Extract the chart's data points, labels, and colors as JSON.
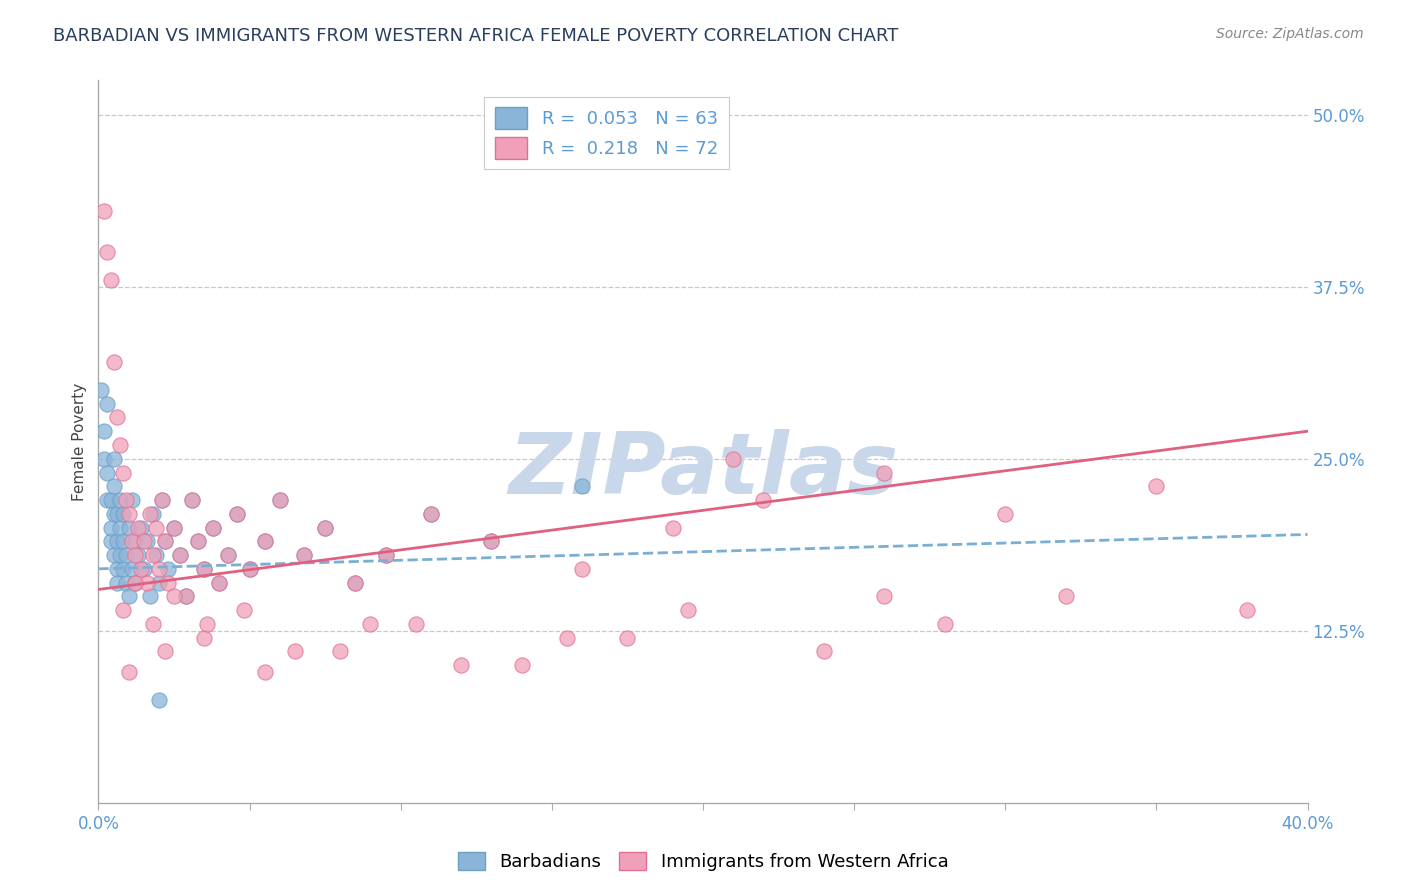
{
  "title": "BARBADIAN VS IMMIGRANTS FROM WESTERN AFRICA FEMALE POVERTY CORRELATION CHART",
  "source": "Source: ZipAtlas.com",
  "ylabel": "Female Poverty",
  "xlim": [
    0.0,
    0.4
  ],
  "ylim": [
    0.0,
    0.525
  ],
  "xticks": [
    0.0,
    0.05,
    0.1,
    0.15,
    0.2,
    0.25,
    0.3,
    0.35,
    0.4
  ],
  "xticklabels": [
    "0.0%",
    "",
    "",
    "",
    "",
    "",
    "",
    "",
    "40.0%"
  ],
  "ytick_positions": [
    0.125,
    0.25,
    0.375,
    0.5
  ],
  "ytick_labels": [
    "12.5%",
    "25.0%",
    "37.5%",
    "50.0%"
  ],
  "grid_color": "#c8c8c8",
  "background_color": "#ffffff",
  "blue_color": "#8ab4d8",
  "blue_edge": "#6a9fc8",
  "blue_line": "#7aafd4",
  "pink_color": "#f0a0b8",
  "pink_edge": "#e07090",
  "pink_line": "#e06080",
  "blue_trend": [
    0.17,
    0.195
  ],
  "pink_trend": [
    0.155,
    0.27
  ],
  "blue_R": 0.053,
  "blue_N": 63,
  "pink_R": 0.218,
  "pink_N": 72,
  "watermark": "ZIPatlas",
  "watermark_color": "#c8d8ea",
  "title_fontsize": 13,
  "axis_label_fontsize": 11,
  "tick_fontsize": 12,
  "legend_fontsize": 13,
  "source_fontsize": 10,
  "blue_x": [
    0.001,
    0.002,
    0.002,
    0.003,
    0.003,
    0.003,
    0.004,
    0.004,
    0.004,
    0.005,
    0.005,
    0.005,
    0.005,
    0.006,
    0.006,
    0.006,
    0.006,
    0.007,
    0.007,
    0.007,
    0.008,
    0.008,
    0.008,
    0.009,
    0.009,
    0.01,
    0.01,
    0.011,
    0.011,
    0.012,
    0.012,
    0.013,
    0.014,
    0.015,
    0.016,
    0.017,
    0.018,
    0.019,
    0.02,
    0.021,
    0.022,
    0.023,
    0.025,
    0.027,
    0.029,
    0.031,
    0.033,
    0.035,
    0.038,
    0.04,
    0.043,
    0.046,
    0.05,
    0.055,
    0.06,
    0.068,
    0.075,
    0.085,
    0.095,
    0.11,
    0.13,
    0.16,
    0.02
  ],
  "blue_y": [
    0.3,
    0.25,
    0.27,
    0.22,
    0.24,
    0.29,
    0.19,
    0.22,
    0.2,
    0.21,
    0.18,
    0.23,
    0.25,
    0.17,
    0.19,
    0.21,
    0.16,
    0.18,
    0.2,
    0.22,
    0.17,
    0.19,
    0.21,
    0.16,
    0.18,
    0.15,
    0.2,
    0.17,
    0.22,
    0.16,
    0.19,
    0.18,
    0.2,
    0.17,
    0.19,
    0.15,
    0.21,
    0.18,
    0.16,
    0.22,
    0.19,
    0.17,
    0.2,
    0.18,
    0.15,
    0.22,
    0.19,
    0.17,
    0.2,
    0.16,
    0.18,
    0.21,
    0.17,
    0.19,
    0.22,
    0.18,
    0.2,
    0.16,
    0.18,
    0.21,
    0.19,
    0.23,
    0.075
  ],
  "pink_x": [
    0.002,
    0.003,
    0.004,
    0.005,
    0.006,
    0.007,
    0.008,
    0.009,
    0.01,
    0.011,
    0.012,
    0.013,
    0.014,
    0.015,
    0.016,
    0.017,
    0.018,
    0.019,
    0.02,
    0.021,
    0.022,
    0.023,
    0.025,
    0.027,
    0.029,
    0.031,
    0.033,
    0.035,
    0.038,
    0.04,
    0.043,
    0.046,
    0.05,
    0.055,
    0.06,
    0.068,
    0.075,
    0.085,
    0.095,
    0.11,
    0.13,
    0.16,
    0.19,
    0.22,
    0.26,
    0.3,
    0.35,
    0.008,
    0.012,
    0.018,
    0.025,
    0.035,
    0.048,
    0.065,
    0.09,
    0.12,
    0.155,
    0.195,
    0.24,
    0.28,
    0.32,
    0.01,
    0.022,
    0.036,
    0.055,
    0.08,
    0.105,
    0.14,
    0.175,
    0.21,
    0.26,
    0.38
  ],
  "pink_y": [
    0.43,
    0.4,
    0.38,
    0.32,
    0.28,
    0.26,
    0.24,
    0.22,
    0.21,
    0.19,
    0.18,
    0.2,
    0.17,
    0.19,
    0.16,
    0.21,
    0.18,
    0.2,
    0.17,
    0.22,
    0.19,
    0.16,
    0.2,
    0.18,
    0.15,
    0.22,
    0.19,
    0.17,
    0.2,
    0.16,
    0.18,
    0.21,
    0.17,
    0.19,
    0.22,
    0.18,
    0.2,
    0.16,
    0.18,
    0.21,
    0.19,
    0.17,
    0.2,
    0.22,
    0.24,
    0.21,
    0.23,
    0.14,
    0.16,
    0.13,
    0.15,
    0.12,
    0.14,
    0.11,
    0.13,
    0.1,
    0.12,
    0.14,
    0.11,
    0.13,
    0.15,
    0.095,
    0.11,
    0.13,
    0.095,
    0.11,
    0.13,
    0.1,
    0.12,
    0.25,
    0.15,
    0.14
  ]
}
